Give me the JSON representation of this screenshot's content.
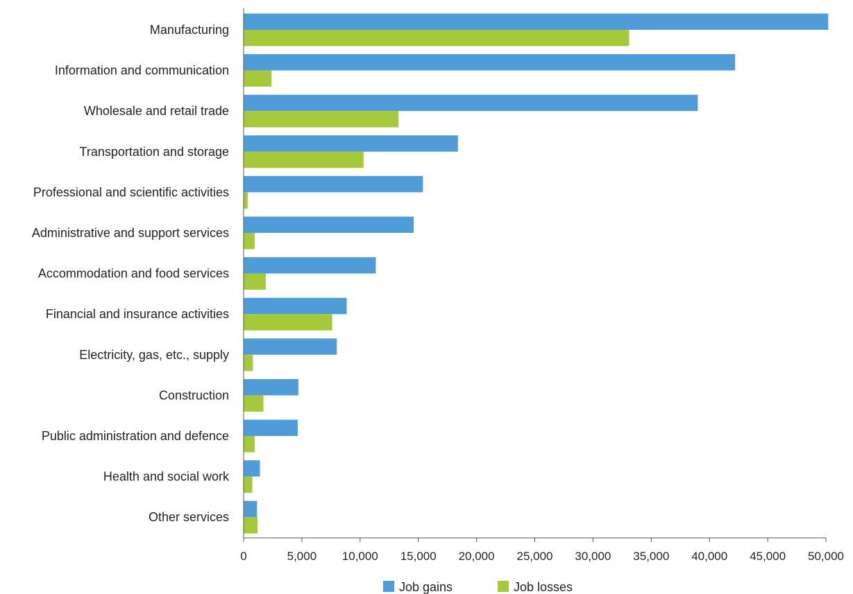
{
  "chart_data": {
    "type": "bar",
    "orientation": "horizontal",
    "categories": [
      "Manufacturing",
      "Information and communication",
      "Wholesale and retail trade",
      "Transportation and storage",
      "Professional and scientific activities",
      "Administrative and support services",
      "Accommodation and food services",
      "Financial and insurance activities",
      "Electricity, gas, etc., supply",
      "Construction",
      "Public administration and defence",
      "Health and social work",
      "Other services"
    ],
    "series": [
      {
        "name": "Job gains",
        "color": "#4f9cd8",
        "values": [
          50200,
          42200,
          39000,
          18400,
          15400,
          14600,
          11350,
          8850,
          8000,
          4700,
          4650,
          1400,
          1150
        ]
      },
      {
        "name": "Job losses",
        "color": "#a5c93a",
        "values": [
          33100,
          2400,
          13300,
          10300,
          350,
          950,
          1900,
          7600,
          800,
          1700,
          950,
          750,
          1200
        ]
      }
    ],
    "xlim": [
      0,
      50000
    ],
    "xticks": [
      0,
      5000,
      10000,
      15000,
      20000,
      25000,
      30000,
      35000,
      40000,
      45000,
      50000
    ],
    "xtick_labels": [
      "0",
      "5,000",
      "10,000",
      "15,000",
      "20,000",
      "25,000",
      "30,000",
      "35,000",
      "40,000",
      "45,000",
      "50,000"
    ],
    "title": "",
    "xlabel": "",
    "ylabel": "",
    "grid": false,
    "legend_position": "bottom"
  }
}
